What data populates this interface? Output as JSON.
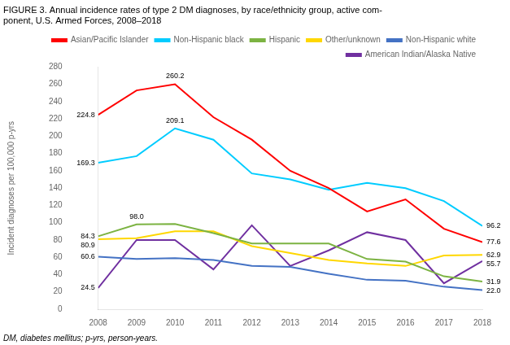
{
  "chart_data": {
    "type": "line",
    "title": "FIGURE 3. Annual incidence rates of type 2 DM diagnoses, by race/ethnicity group, active com-\nponent, U.S. Armed Forces, 2008–2018",
    "footnote": "DM, diabetes mellitus; p-yrs, person-years.",
    "ylabel": "Incident diagnoses per 100,000 p-yrs",
    "x": [
      2008,
      2009,
      2010,
      2011,
      2012,
      2013,
      2014,
      2015,
      2016,
      2017,
      2018
    ],
    "series": [
      {
        "name": "Asian/Pacific Islander",
        "color": "#ff0000",
        "values": [
          224.8,
          253.0,
          260.2,
          222.0,
          196.0,
          160.0,
          140.0,
          113.0,
          127.0,
          93.0,
          77.6
        ]
      },
      {
        "name": "Non-Hispanic black",
        "color": "#00ccff",
        "values": [
          169.3,
          177.0,
          209.1,
          196.0,
          157.0,
          150.0,
          138.0,
          146.0,
          140.0,
          125.0,
          96.2
        ]
      },
      {
        "name": "Hispanic",
        "color": "#7cb342",
        "values": [
          84.3,
          98.0,
          98.5,
          88.0,
          76.0,
          76.0,
          76.0,
          58.0,
          55.0,
          38.0,
          31.9
        ]
      },
      {
        "name": "Other/unknown",
        "color": "#ffd700",
        "values": [
          80.9,
          82.0,
          90.0,
          90.0,
          73.0,
          65.0,
          57.0,
          53.0,
          50.0,
          62.0,
          62.9
        ]
      },
      {
        "name": "Non-Hispanic white",
        "color": "#4472c4",
        "values": [
          60.6,
          58.0,
          59.0,
          57.0,
          50.0,
          49.0,
          41.0,
          34.0,
          33.0,
          26.0,
          22.0
        ]
      },
      {
        "name": "American Indian/Alaska Native",
        "color": "#7030a0",
        "values": [
          24.5,
          80.0,
          80.0,
          46.0,
          97.0,
          50.0,
          68.0,
          89.0,
          80.0,
          30.0,
          55.7
        ]
      }
    ],
    "annotations": [
      {
        "x": 2008,
        "y": 224.8,
        "text": "224.8"
      },
      {
        "x": 2008,
        "y": 169.3,
        "text": "169.3"
      },
      {
        "x": 2008,
        "y": 84.3,
        "text": "84.3"
      },
      {
        "x": 2008,
        "y": 80.9,
        "text": "80.9"
      },
      {
        "x": 2008,
        "y": 60.6,
        "text": "60.6"
      },
      {
        "x": 2008,
        "y": 24.5,
        "text": "24.5"
      },
      {
        "x": 2018,
        "y": 77.6,
        "text": "77.6"
      },
      {
        "x": 2018,
        "y": 96.2,
        "text": "96.2"
      },
      {
        "x": 2018,
        "y": 31.9,
        "text": "31.9"
      },
      {
        "x": 2018,
        "y": 62.9,
        "text": "62.9"
      },
      {
        "x": 2018,
        "y": 22.0,
        "text": "22.0"
      },
      {
        "x": 2018,
        "y": 55.7,
        "text": "55.7"
      },
      {
        "x": 2010,
        "y": 260.2,
        "text": "260.2"
      },
      {
        "x": 2010,
        "y": 209.1,
        "text": "209.1"
      },
      {
        "x": 2009,
        "y": 98.0,
        "text": "98.0"
      }
    ],
    "xlim": [
      2008,
      2018
    ],
    "xticks": [
      2008,
      2009,
      2010,
      2011,
      2012,
      2013,
      2014,
      2015,
      2016,
      2017,
      2018
    ],
    "ylim": [
      0,
      280
    ],
    "yticks": [
      0,
      20,
      40,
      60,
      80,
      100,
      120,
      140,
      160,
      180,
      200,
      220,
      240,
      260,
      280
    ],
    "legend": "upper right",
    "grid": false
  }
}
